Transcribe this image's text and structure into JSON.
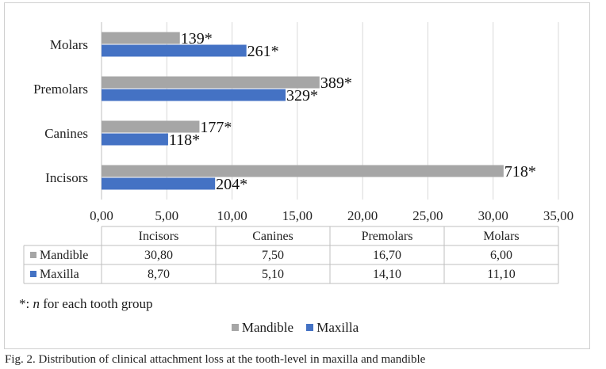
{
  "chart_data": {
    "type": "bar",
    "orientation": "horizontal",
    "categories": [
      "Incisors",
      "Canines",
      "Premolars",
      "Molars"
    ],
    "series": [
      {
        "name": "Mandible",
        "color": "#a6a6a6",
        "values": [
          30.8,
          7.5,
          16.7,
          6.0
        ],
        "value_labels": [
          "30,80",
          "7,50",
          "16,70",
          "6,00"
        ],
        "n_labels": [
          "718*",
          "177*",
          "389*",
          "139*"
        ]
      },
      {
        "name": "Maxilla",
        "color": "#4472c4",
        "values": [
          8.7,
          5.1,
          14.1,
          11.1
        ],
        "value_labels": [
          "8,70",
          "5,10",
          "14,10",
          "11,10"
        ],
        "n_labels": [
          "204*",
          "118*",
          "329*",
          "261*"
        ]
      }
    ],
    "xlim": [
      0,
      35
    ],
    "x_ticks": [
      "0,00",
      "5,00",
      "10,00",
      "15,00",
      "20,00",
      "25,00",
      "30,00",
      "35,00"
    ],
    "grid": true,
    "data_table": true,
    "legend": "bottom-center"
  },
  "note": {
    "prefix": "*: ",
    "italic": "n",
    "suffix": " for each tooth group"
  },
  "caption": "Fig. 2. Distribution of clinical attachment loss at the tooth-level in maxilla and mandible"
}
